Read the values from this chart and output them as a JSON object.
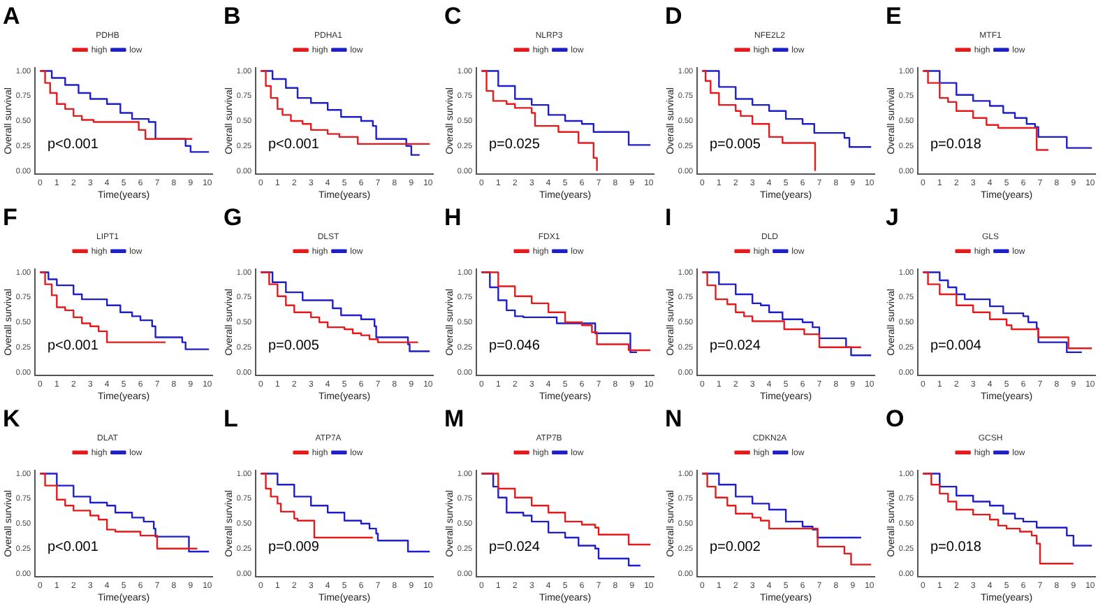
{
  "chart_data": [
    {
      "type": "step",
      "title": "A",
      "legend_title": "PDHB",
      "legend": "top",
      "xlabel": "Time(years)",
      "ylabel": "Overall survival",
      "xlim": [
        -0.3,
        10.3
      ],
      "ylim": [
        -0.03,
        1.03
      ],
      "xticks": [
        0,
        1,
        2,
        3,
        4,
        5,
        6,
        7,
        8,
        9,
        10
      ],
      "yticks": [
        {
          "value": 0,
          "label": "0.00"
        },
        {
          "value": 0.25,
          "label": "0.25"
        },
        {
          "value": 0.5,
          "label": "0.50"
        },
        {
          "value": 0.75,
          "label": "0.75"
        },
        {
          "value": 1,
          "label": "1.00"
        }
      ],
      "annotations": [
        "p<0.001"
      ],
      "series": [
        {
          "name": "high",
          "color": "#e41a1c",
          "x": [
            0,
            0.3,
            0.6,
            1,
            1.5,
            2,
            2.5,
            3.2,
            5.9,
            6.3,
            9.1
          ],
          "values": [
            1,
            0.88,
            0.78,
            0.67,
            0.62,
            0.55,
            0.51,
            0.49,
            0.41,
            0.32,
            0.32
          ]
        },
        {
          "name": "low",
          "color": "#1f1fc8",
          "x": [
            0,
            0.7,
            1.5,
            2.3,
            3,
            4,
            4.8,
            5.5,
            6.5,
            6.9,
            8.7,
            9,
            10.1
          ],
          "values": [
            1,
            0.93,
            0.86,
            0.78,
            0.72,
            0.67,
            0.58,
            0.52,
            0.49,
            0.32,
            0.25,
            0.19,
            0.19
          ]
        }
      ]
    },
    {
      "type": "step",
      "title": "B",
      "legend_title": "PDHA1",
      "legend": "top",
      "xlabel": "Time(years)",
      "ylabel": "Overall survival",
      "xlim": [
        -0.3,
        10.3
      ],
      "ylim": [
        -0.03,
        1.03
      ],
      "xticks": [
        0,
        1,
        2,
        3,
        4,
        5,
        6,
        7,
        8,
        9,
        10
      ],
      "yticks": [
        {
          "value": 0,
          "label": "0.00"
        },
        {
          "value": 0.25,
          "label": "0.25"
        },
        {
          "value": 0.5,
          "label": "0.50"
        },
        {
          "value": 0.75,
          "label": "0.75"
        },
        {
          "value": 1,
          "label": "1.00"
        }
      ],
      "annotations": [
        "p<0.001"
      ],
      "series": [
        {
          "name": "high",
          "color": "#e41a1c",
          "x": [
            0,
            0.3,
            0.6,
            1,
            1.3,
            1.8,
            2.5,
            3,
            4,
            4.7,
            5.8,
            10.1
          ],
          "values": [
            1,
            0.85,
            0.73,
            0.62,
            0.56,
            0.5,
            0.47,
            0.41,
            0.37,
            0.34,
            0.27,
            0.27
          ]
        },
        {
          "name": "low",
          "color": "#1f1fc8",
          "x": [
            0,
            0.7,
            1.5,
            2.2,
            3,
            4,
            4.8,
            6,
            6.7,
            6.9,
            8.7,
            9,
            9.5
          ],
          "values": [
            1,
            0.92,
            0.83,
            0.73,
            0.68,
            0.61,
            0.54,
            0.5,
            0.45,
            0.32,
            0.25,
            0.16,
            0.16
          ]
        }
      ]
    },
    {
      "type": "step",
      "title": "C",
      "legend_title": "NLRP3",
      "legend": "top",
      "xlabel": "Time(years)",
      "ylabel": "Overall survival",
      "xlim": [
        -0.3,
        10.3
      ],
      "ylim": [
        -0.03,
        1.03
      ],
      "xticks": [
        0,
        1,
        2,
        3,
        4,
        5,
        6,
        7,
        8,
        9,
        10
      ],
      "yticks": [
        {
          "value": 0,
          "label": "0.00"
        },
        {
          "value": 0.25,
          "label": "0.25"
        },
        {
          "value": 0.5,
          "label": "0.50"
        },
        {
          "value": 0.75,
          "label": "0.75"
        },
        {
          "value": 1,
          "label": "1.00"
        }
      ],
      "annotations": [
        "p=0.025"
      ],
      "series": [
        {
          "name": "high",
          "color": "#e41a1c",
          "x": [
            0,
            0.3,
            0.7,
            1.5,
            2,
            3,
            3.2,
            4.6,
            5.8,
            6.7,
            6.9
          ],
          "values": [
            1,
            0.8,
            0.7,
            0.67,
            0.63,
            0.58,
            0.45,
            0.39,
            0.28,
            0.13,
            0
          ]
        },
        {
          "name": "low",
          "color": "#1f1fc8",
          "x": [
            0,
            1,
            2,
            3,
            4,
            5,
            6,
            6.7,
            8.8,
            10.1
          ],
          "values": [
            1,
            0.85,
            0.72,
            0.66,
            0.56,
            0.5,
            0.47,
            0.39,
            0.26,
            0.26
          ]
        }
      ]
    },
    {
      "type": "step",
      "title": "D",
      "legend_title": "NFE2L2",
      "legend": "top",
      "xlabel": "Time(years)",
      "ylabel": "Overall survival",
      "xlim": [
        -0.3,
        10.3
      ],
      "ylim": [
        -0.03,
        1.03
      ],
      "xticks": [
        0,
        1,
        2,
        3,
        4,
        5,
        6,
        7,
        8,
        9,
        10
      ],
      "yticks": [
        {
          "value": 0,
          "label": "0.00"
        },
        {
          "value": 0.25,
          "label": "0.25"
        },
        {
          "value": 0.5,
          "label": "0.50"
        },
        {
          "value": 0.75,
          "label": "0.75"
        },
        {
          "value": 1,
          "label": "1.00"
        }
      ],
      "annotations": [
        "p=0.005"
      ],
      "series": [
        {
          "name": "high",
          "color": "#e41a1c",
          "x": [
            0,
            0.2,
            0.5,
            1,
            2,
            2.3,
            3,
            4,
            4.8,
            6.75
          ],
          "values": [
            1,
            0.9,
            0.78,
            0.66,
            0.6,
            0.55,
            0.47,
            0.34,
            0.28,
            0
          ]
        },
        {
          "name": "low",
          "color": "#1f1fc8",
          "x": [
            0,
            1,
            2,
            3,
            4,
            5,
            6,
            6.7,
            8.5,
            8.8,
            10.1
          ],
          "values": [
            1,
            0.84,
            0.72,
            0.66,
            0.6,
            0.52,
            0.47,
            0.38,
            0.33,
            0.24,
            0.24
          ]
        }
      ]
    },
    {
      "type": "step",
      "title": "E",
      "legend_title": "MTF1",
      "legend": "top",
      "xlabel": "Time(years)",
      "ylabel": "Overall survival",
      "xlim": [
        -0.3,
        10.3
      ],
      "ylim": [
        -0.03,
        1.03
      ],
      "xticks": [
        0,
        1,
        2,
        3,
        4,
        5,
        6,
        7,
        8,
        9,
        10
      ],
      "yticks": [
        {
          "value": 0,
          "label": "0.00"
        },
        {
          "value": 0.25,
          "label": "0.25"
        },
        {
          "value": 0.5,
          "label": "0.50"
        },
        {
          "value": 0.75,
          "label": "0.75"
        },
        {
          "value": 1,
          "label": "1.00"
        }
      ],
      "annotations": [
        "p=0.018"
      ],
      "series": [
        {
          "name": "high",
          "color": "#e41a1c",
          "x": [
            0,
            0.3,
            1,
            1.5,
            2,
            3,
            3.8,
            4.5,
            6.8,
            7.5
          ],
          "values": [
            1,
            0.88,
            0.73,
            0.69,
            0.6,
            0.53,
            0.46,
            0.43,
            0.21,
            0.21
          ]
        },
        {
          "name": "low",
          "color": "#1f1fc8",
          "x": [
            0,
            1,
            2,
            3,
            4,
            4.8,
            5.5,
            6.2,
            6.7,
            6.9,
            8.6,
            10.1
          ],
          "values": [
            1,
            0.88,
            0.76,
            0.7,
            0.65,
            0.58,
            0.53,
            0.47,
            0.44,
            0.34,
            0.23,
            0.23
          ]
        }
      ]
    },
    {
      "type": "step",
      "title": "F",
      "legend_title": "LIPT1",
      "legend": "top",
      "xlabel": "Time(years)",
      "ylabel": "Overall survival",
      "xlim": [
        -0.3,
        10.3
      ],
      "ylim": [
        -0.03,
        1.03
      ],
      "xticks": [
        0,
        1,
        2,
        3,
        4,
        5,
        6,
        7,
        8,
        9,
        10
      ],
      "yticks": [
        {
          "value": 0,
          "label": "0.00"
        },
        {
          "value": 0.25,
          "label": "0.25"
        },
        {
          "value": 0.5,
          "label": "0.50"
        },
        {
          "value": 0.75,
          "label": "0.75"
        },
        {
          "value": 1,
          "label": "1.00"
        }
      ],
      "annotations": [
        "p<0.001"
      ],
      "series": [
        {
          "name": "high",
          "color": "#e41a1c",
          "x": [
            0,
            0.3,
            0.7,
            1,
            1.5,
            2,
            2.5,
            3,
            3.5,
            4,
            7.5
          ],
          "values": [
            1,
            0.88,
            0.77,
            0.65,
            0.62,
            0.55,
            0.49,
            0.46,
            0.41,
            0.3,
            0.3
          ]
        },
        {
          "name": "low",
          "color": "#1f1fc8",
          "x": [
            0,
            0.5,
            1,
            2,
            2.5,
            4,
            4.8,
            5.5,
            6,
            6.7,
            6.9,
            8.5,
            8.7,
            10.1
          ],
          "values": [
            1,
            0.93,
            0.87,
            0.78,
            0.73,
            0.67,
            0.6,
            0.56,
            0.52,
            0.46,
            0.35,
            0.3,
            0.23,
            0.23
          ]
        }
      ]
    },
    {
      "type": "step",
      "title": "G",
      "legend_title": "DLST",
      "legend": "top",
      "xlabel": "Time(years)",
      "ylabel": "Overall survival",
      "xlim": [
        -0.3,
        10.3
      ],
      "ylim": [
        -0.03,
        1.03
      ],
      "xticks": [
        0,
        1,
        2,
        3,
        4,
        5,
        6,
        7,
        8,
        9,
        10
      ],
      "yticks": [
        {
          "value": 0,
          "label": "0.00"
        },
        {
          "value": 0.25,
          "label": "0.25"
        },
        {
          "value": 0.5,
          "label": "0.50"
        },
        {
          "value": 0.75,
          "label": "0.75"
        },
        {
          "value": 1,
          "label": "1.00"
        }
      ],
      "annotations": [
        "p=0.005"
      ],
      "series": [
        {
          "name": "high",
          "color": "#e41a1c",
          "x": [
            0,
            0.5,
            1,
            1.5,
            2,
            3,
            3.5,
            4,
            5,
            5.5,
            6,
            6.5,
            7,
            9.4
          ],
          "values": [
            1,
            0.88,
            0.76,
            0.67,
            0.6,
            0.55,
            0.5,
            0.45,
            0.43,
            0.39,
            0.37,
            0.33,
            0.3,
            0.3
          ]
        },
        {
          "name": "low",
          "color": "#1f1fc8",
          "x": [
            0,
            0.7,
            1.5,
            2.5,
            4.3,
            4.8,
            6,
            6.8,
            6.9,
            8.8,
            8.9,
            10.1
          ],
          "values": [
            1,
            0.9,
            0.8,
            0.72,
            0.64,
            0.57,
            0.53,
            0.46,
            0.35,
            0.28,
            0.21,
            0.21
          ]
        }
      ]
    },
    {
      "type": "step",
      "title": "H",
      "legend_title": "FDX1",
      "legend": "top",
      "xlabel": "Time(years)",
      "ylabel": "Overall survival",
      "xlim": [
        -0.3,
        10.3
      ],
      "ylim": [
        -0.03,
        1.03
      ],
      "xticks": [
        0,
        1,
        2,
        3,
        4,
        5,
        6,
        7,
        8,
        9,
        10
      ],
      "yticks": [
        {
          "value": 0,
          "label": "0.00"
        },
        {
          "value": 0.25,
          "label": "0.25"
        },
        {
          "value": 0.5,
          "label": "0.50"
        },
        {
          "value": 0.75,
          "label": "0.75"
        },
        {
          "value": 1,
          "label": "1.00"
        }
      ],
      "annotations": [
        "p=0.046"
      ],
      "series": [
        {
          "name": "high",
          "color": "#e41a1c",
          "x": [
            0,
            1,
            2,
            3,
            4,
            5,
            6,
            6.6,
            6.9,
            8.8,
            10.1
          ],
          "values": [
            1,
            0.86,
            0.76,
            0.69,
            0.6,
            0.5,
            0.47,
            0.4,
            0.28,
            0.22,
            0.22
          ]
        },
        {
          "name": "low",
          "color": "#1f1fc8",
          "x": [
            0,
            0.5,
            1,
            1.5,
            2,
            2.5,
            4.5,
            6.8,
            8.9,
            9.3
          ],
          "values": [
            1,
            0.85,
            0.72,
            0.62,
            0.56,
            0.55,
            0.49,
            0.39,
            0.2,
            0.2
          ]
        }
      ]
    },
    {
      "type": "step",
      "title": "I",
      "legend_title": "DLD",
      "legend": "top",
      "xlabel": "Time(years)",
      "ylabel": "Overall survival",
      "xlim": [
        -0.3,
        10.3
      ],
      "ylim": [
        -0.03,
        1.03
      ],
      "xticks": [
        0,
        1,
        2,
        3,
        4,
        5,
        6,
        7,
        8,
        9,
        10
      ],
      "yticks": [
        {
          "value": 0,
          "label": "0.00"
        },
        {
          "value": 0.25,
          "label": "0.25"
        },
        {
          "value": 0.5,
          "label": "0.50"
        },
        {
          "value": 0.75,
          "label": "0.75"
        },
        {
          "value": 1,
          "label": "1.00"
        }
      ],
      "annotations": [
        "p=0.024"
      ],
      "series": [
        {
          "name": "high",
          "color": "#e41a1c",
          "x": [
            0,
            0.3,
            0.8,
            1.5,
            2,
            2.5,
            3,
            4.9,
            6.1,
            7,
            9.5
          ],
          "values": [
            1,
            0.87,
            0.73,
            0.68,
            0.6,
            0.56,
            0.51,
            0.43,
            0.38,
            0.25,
            0.25
          ]
        },
        {
          "name": "low",
          "color": "#1f1fc8",
          "x": [
            0,
            1,
            2,
            3,
            3.5,
            4,
            4.8,
            6,
            6.6,
            7,
            8.6,
            8.9,
            10.1
          ],
          "values": [
            1,
            0.88,
            0.78,
            0.69,
            0.67,
            0.6,
            0.53,
            0.5,
            0.45,
            0.34,
            0.25,
            0.17,
            0.17
          ]
        }
      ]
    },
    {
      "type": "step",
      "title": "J",
      "legend_title": "GLS",
      "legend": "top",
      "xlabel": "Time(years)",
      "ylabel": "Overall survival",
      "xlim": [
        -0.3,
        10.3
      ],
      "ylim": [
        -0.03,
        1.03
      ],
      "xticks": [
        0,
        1,
        2,
        3,
        4,
        5,
        6,
        7,
        8,
        9,
        10
      ],
      "yticks": [
        {
          "value": 0,
          "label": "0.00"
        },
        {
          "value": 0.25,
          "label": "0.25"
        },
        {
          "value": 0.5,
          "label": "0.50"
        },
        {
          "value": 0.75,
          "label": "0.75"
        },
        {
          "value": 1,
          "label": "1.00"
        }
      ],
      "annotations": [
        "p=0.004"
      ],
      "series": [
        {
          "name": "high",
          "color": "#e41a1c",
          "x": [
            0,
            0.3,
            1,
            2,
            3,
            4,
            5,
            5.3,
            6.9,
            8.7,
            10.1
          ],
          "values": [
            1,
            0.88,
            0.78,
            0.67,
            0.6,
            0.53,
            0.47,
            0.43,
            0.35,
            0.24,
            0.24
          ]
        },
        {
          "name": "low",
          "color": "#1f1fc8",
          "x": [
            0,
            1,
            1.5,
            2,
            2.5,
            4,
            4.8,
            6,
            6.3,
            6.8,
            6.9,
            8.6,
            9.5
          ],
          "values": [
            1,
            0.92,
            0.85,
            0.78,
            0.73,
            0.66,
            0.59,
            0.56,
            0.5,
            0.44,
            0.3,
            0.2,
            0.2
          ]
        }
      ]
    },
    {
      "type": "step",
      "title": "K",
      "legend_title": "DLAT",
      "legend": "top",
      "xlabel": "Time(years)",
      "ylabel": "Overall survival",
      "xlim": [
        -0.3,
        10.3
      ],
      "ylim": [
        -0.03,
        1.03
      ],
      "xticks": [
        0,
        1,
        2,
        3,
        4,
        5,
        6,
        7,
        8,
        9,
        10
      ],
      "yticks": [
        {
          "value": 0,
          "label": "0.00"
        },
        {
          "value": 0.25,
          "label": "0.25"
        },
        {
          "value": 0.5,
          "label": "0.50"
        },
        {
          "value": 0.75,
          "label": "0.75"
        },
        {
          "value": 1,
          "label": "1.00"
        }
      ],
      "annotations": [
        "p<0.001"
      ],
      "series": [
        {
          "name": "high",
          "color": "#e41a1c",
          "x": [
            0,
            0.3,
            1,
            1.5,
            2,
            3,
            3.5,
            4,
            4.5,
            6,
            7,
            9.4
          ],
          "values": [
            1,
            0.88,
            0.74,
            0.68,
            0.63,
            0.58,
            0.54,
            0.44,
            0.42,
            0.38,
            0.25,
            0.25
          ]
        },
        {
          "name": "low",
          "color": "#1f1fc8",
          "x": [
            0,
            1,
            2,
            3,
            4,
            4.5,
            5.5,
            6.2,
            6.8,
            6.9,
            8.9,
            10.1
          ],
          "values": [
            1,
            0.88,
            0.77,
            0.71,
            0.68,
            0.61,
            0.56,
            0.52,
            0.45,
            0.37,
            0.22,
            0.22
          ]
        }
      ]
    },
    {
      "type": "step",
      "title": "L",
      "legend_title": "ATP7A",
      "legend": "top",
      "xlabel": "Time(years)",
      "ylabel": "Overall survival",
      "xlim": [
        -0.3,
        10.3
      ],
      "ylim": [
        -0.03,
        1.03
      ],
      "xticks": [
        0,
        1,
        2,
        3,
        4,
        5,
        6,
        7,
        8,
        9,
        10
      ],
      "yticks": [
        {
          "value": 0,
          "label": "0.00"
        },
        {
          "value": 0.25,
          "label": "0.25"
        },
        {
          "value": 0.5,
          "label": "0.50"
        },
        {
          "value": 0.75,
          "label": "0.75"
        },
        {
          "value": 1,
          "label": "1.00"
        }
      ],
      "annotations": [
        "p=0.009"
      ],
      "series": [
        {
          "name": "high",
          "color": "#e41a1c",
          "x": [
            0,
            0.3,
            0.6,
            1,
            1.2,
            2,
            2.2,
            3.2,
            6.7
          ],
          "values": [
            1,
            0.85,
            0.77,
            0.7,
            0.62,
            0.55,
            0.53,
            0.36,
            0.36
          ]
        },
        {
          "name": "low",
          "color": "#1f1fc8",
          "x": [
            0,
            1,
            2,
            3,
            4,
            5,
            6,
            6.5,
            6.9,
            7,
            8.8,
            10.1
          ],
          "values": [
            1,
            0.89,
            0.77,
            0.68,
            0.61,
            0.53,
            0.5,
            0.45,
            0.4,
            0.33,
            0.22,
            0.22
          ]
        }
      ]
    },
    {
      "type": "step",
      "title": "M",
      "legend_title": "ATP7B",
      "legend": "top",
      "xlabel": "Time(years)",
      "ylabel": "Overall survival",
      "xlim": [
        -0.3,
        10.3
      ],
      "ylim": [
        -0.03,
        1.03
      ],
      "xticks": [
        0,
        1,
        2,
        3,
        4,
        5,
        6,
        7,
        8,
        9,
        10
      ],
      "yticks": [
        {
          "value": 0,
          "label": "0.00"
        },
        {
          "value": 0.25,
          "label": "0.25"
        },
        {
          "value": 0.5,
          "label": "0.50"
        },
        {
          "value": 0.75,
          "label": "0.75"
        },
        {
          "value": 1,
          "label": "1.00"
        }
      ],
      "annotations": [
        "p=0.024"
      ],
      "series": [
        {
          "name": "high",
          "color": "#e41a1c",
          "x": [
            0,
            1,
            2,
            3,
            4,
            5,
            6,
            6.8,
            7,
            8.8,
            10.1
          ],
          "values": [
            1,
            0.85,
            0.76,
            0.68,
            0.61,
            0.52,
            0.49,
            0.46,
            0.39,
            0.29,
            0.29
          ]
        },
        {
          "name": "low",
          "color": "#1f1fc8",
          "x": [
            0,
            0.7,
            1,
            1.5,
            2.5,
            3,
            4,
            5,
            5.8,
            6.8,
            7,
            8.8,
            9.5
          ],
          "values": [
            1,
            0.87,
            0.76,
            0.61,
            0.58,
            0.52,
            0.41,
            0.36,
            0.28,
            0.25,
            0.15,
            0.08,
            0.08
          ]
        }
      ]
    },
    {
      "type": "step",
      "title": "N",
      "legend_title": "CDKN2A",
      "legend": "top",
      "xlabel": "Time(years)",
      "ylabel": "Overall survival",
      "xlim": [
        -0.3,
        10.3
      ],
      "ylim": [
        -0.03,
        1.03
      ],
      "xticks": [
        0,
        1,
        2,
        3,
        4,
        5,
        6,
        7,
        8,
        9,
        10
      ],
      "yticks": [
        {
          "value": 0,
          "label": "0.00"
        },
        {
          "value": 0.25,
          "label": "0.25"
        },
        {
          "value": 0.5,
          "label": "0.50"
        },
        {
          "value": 0.75,
          "label": "0.75"
        },
        {
          "value": 1,
          "label": "1.00"
        }
      ],
      "annotations": [
        "p=0.002"
      ],
      "series": [
        {
          "name": "high",
          "color": "#e41a1c",
          "x": [
            0,
            0.3,
            0.8,
            1.5,
            2,
            3,
            3.5,
            4,
            6.9,
            8.5,
            8.9,
            10.1
          ],
          "values": [
            1,
            0.87,
            0.76,
            0.68,
            0.6,
            0.56,
            0.53,
            0.45,
            0.27,
            0.2,
            0.09,
            0.09
          ]
        },
        {
          "name": "low",
          "color": "#1f1fc8",
          "x": [
            0,
            1,
            2,
            3,
            4,
            5,
            6,
            6.6,
            6.9,
            9.5
          ],
          "values": [
            1,
            0.89,
            0.77,
            0.7,
            0.64,
            0.52,
            0.47,
            0.44,
            0.36,
            0.36
          ]
        }
      ]
    },
    {
      "type": "step",
      "title": "O",
      "legend_title": "GCSH",
      "legend": "top",
      "xlabel": "Time(years)",
      "ylabel": "Overall survival",
      "xlim": [
        -0.3,
        10.3
      ],
      "ylim": [
        -0.03,
        1.03
      ],
      "xticks": [
        0,
        1,
        2,
        3,
        4,
        5,
        6,
        7,
        8,
        9,
        10
      ],
      "yticks": [
        {
          "value": 0,
          "label": "0.00"
        },
        {
          "value": 0.25,
          "label": "0.25"
        },
        {
          "value": 0.5,
          "label": "0.50"
        },
        {
          "value": 0.75,
          "label": "0.75"
        },
        {
          "value": 1,
          "label": "1.00"
        }
      ],
      "annotations": [
        "p=0.018"
      ],
      "series": [
        {
          "name": "high",
          "color": "#e41a1c",
          "x": [
            0,
            0.5,
            1,
            1.5,
            2,
            3,
            4,
            4.5,
            5,
            5.8,
            6.5,
            6.8,
            7,
            9
          ],
          "values": [
            1,
            0.89,
            0.8,
            0.72,
            0.64,
            0.59,
            0.54,
            0.48,
            0.45,
            0.42,
            0.38,
            0.3,
            0.1,
            0.1
          ]
        },
        {
          "name": "low",
          "color": "#1f1fc8",
          "x": [
            0,
            1,
            2,
            3,
            4,
            4.8,
            5.5,
            6,
            6.8,
            8.6,
            9,
            10.1
          ],
          "values": [
            1,
            0.87,
            0.78,
            0.72,
            0.68,
            0.6,
            0.55,
            0.52,
            0.46,
            0.38,
            0.28,
            0.28
          ]
        }
      ]
    }
  ]
}
